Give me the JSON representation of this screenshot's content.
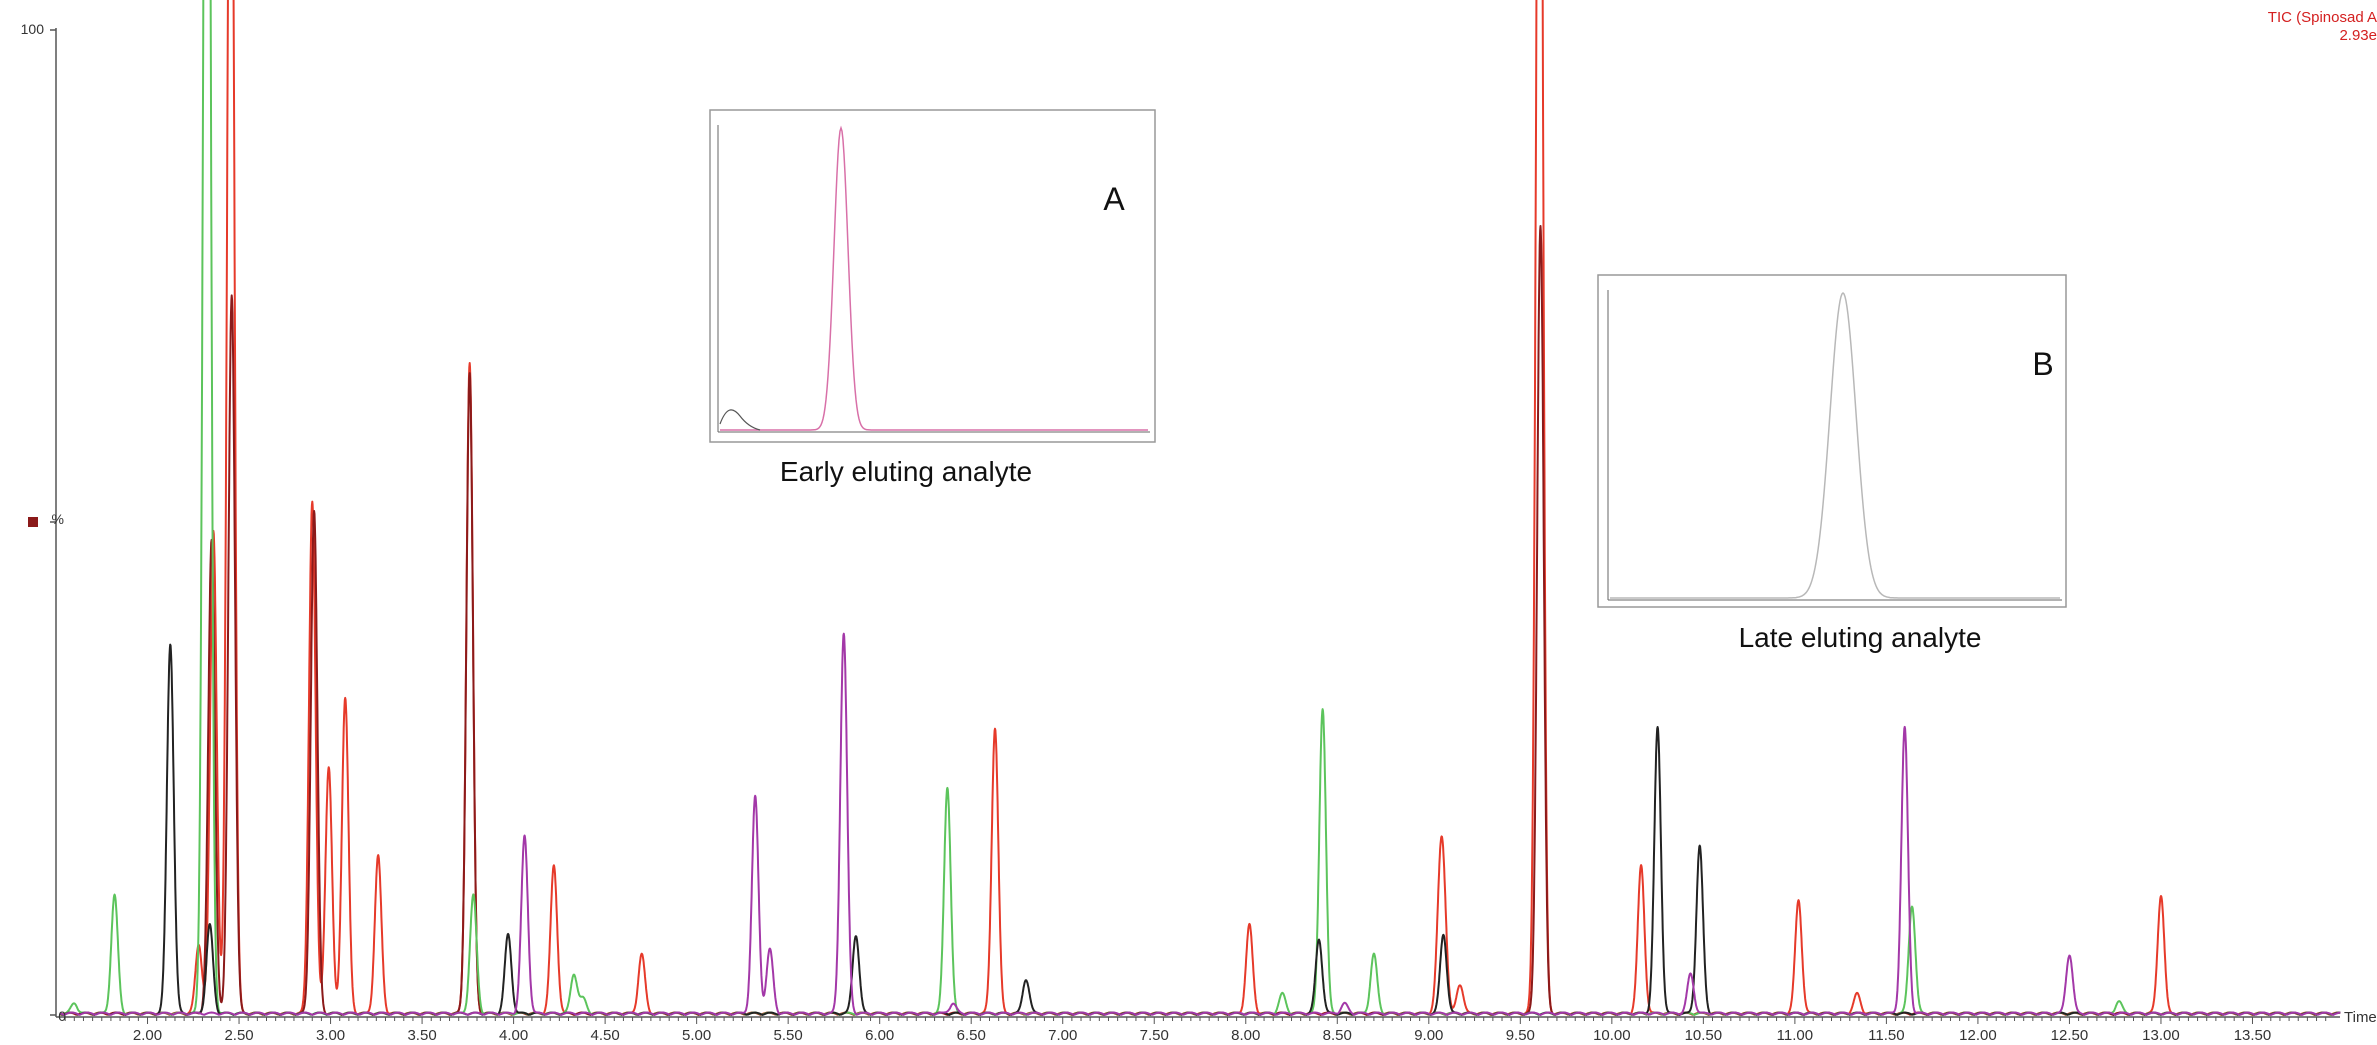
{
  "colors": {
    "red": "#e63a2a",
    "dark_red": "#8b1a1a",
    "green": "#5cc45c",
    "black": "#222222",
    "purple": "#a338a8",
    "pink": "#d870a8",
    "gray": "#b8b8b8",
    "title_red": "#d42020"
  },
  "header": {
    "trace_title": "TIC (Spinosad A",
    "intensity": "2.93e"
  },
  "inset_a": {
    "letter": "A",
    "caption": "Early eluting analyte",
    "trace_color": "#d870a8"
  },
  "inset_b": {
    "letter": "B",
    "caption": "Late eluting analyte",
    "trace_color": "#b8b8b8"
  },
  "chart_data": {
    "type": "line",
    "title": "TIC (Spinosad A",
    "xlabel": "Time",
    "ylabel": "%",
    "xlim": [
      1.5,
      14.0
    ],
    "ylim": [
      0,
      100
    ],
    "y_ticks": [
      0,
      100
    ],
    "x_ticks": [
      2.0,
      2.5,
      3.0,
      3.5,
      4.0,
      4.5,
      5.0,
      5.5,
      6.0,
      6.5,
      7.0,
      7.5,
      8.0,
      8.5,
      9.0,
      9.5,
      10.0,
      10.5,
      11.0,
      11.5,
      12.0,
      12.5,
      13.0,
      13.5
    ],
    "x_tick_labels": [
      "2.00",
      "2.50",
      "3.00",
      "3.50",
      "4.00",
      "4.50",
      "5.00",
      "5.50",
      "6.00",
      "6.50",
      "7.00",
      "7.50",
      "8.00",
      "8.50",
      "9.00",
      "9.50",
      "10.00",
      "10.50",
      "11.00",
      "11.50",
      "12.00",
      "12.50",
      "13.00",
      "13.50"
    ],
    "series": [
      {
        "color": "red",
        "peaks": [
          [
            2.28,
            7
          ],
          [
            2.36,
            49
          ],
          [
            2.45,
            79
          ],
          [
            2.46,
            73
          ],
          [
            2.9,
            52
          ],
          [
            2.99,
            25
          ],
          [
            3.08,
            32
          ],
          [
            3.26,
            16
          ],
          [
            3.76,
            66
          ],
          [
            4.22,
            15
          ],
          [
            4.7,
            6
          ],
          [
            6.63,
            29
          ],
          [
            8.02,
            9
          ],
          [
            9.06,
            10
          ],
          [
            9.08,
            11
          ],
          [
            9.17,
            3
          ],
          [
            9.6,
            80
          ],
          [
            9.61,
            81
          ],
          [
            10.16,
            15
          ],
          [
            11.02,
            11.5
          ],
          [
            11.34,
            2
          ],
          [
            13.0,
            12
          ]
        ]
      },
      {
        "color": "dark_red",
        "peaks": [
          [
            2.35,
            48
          ],
          [
            2.46,
            73
          ],
          [
            2.91,
            51
          ],
          [
            3.76,
            65
          ],
          [
            9.61,
            80
          ]
        ]
      },
      {
        "color": "green",
        "peaks": [
          [
            1.6,
            1
          ],
          [
            1.82,
            12
          ],
          [
            2.32,
            100
          ],
          [
            2.33,
            90
          ],
          [
            3.78,
            12
          ],
          [
            4.33,
            4
          ],
          [
            4.38,
            1.5
          ],
          [
            6.37,
            23
          ],
          [
            8.2,
            2
          ],
          [
            8.42,
            31
          ],
          [
            8.7,
            6
          ],
          [
            11.64,
            11
          ],
          [
            12.77,
            1.2
          ]
        ]
      },
      {
        "color": "black",
        "peaks": [
          [
            2.12,
            21
          ],
          [
            2.13,
            18
          ],
          [
            2.34,
            9
          ],
          [
            3.97,
            8
          ],
          [
            8.4,
            7.5
          ],
          [
            9.08,
            8
          ],
          [
            10.25,
            29
          ],
          [
            10.48,
            17
          ],
          [
            6.8,
            3.5
          ],
          [
            5.87,
            8
          ]
        ]
      },
      {
        "color": "purple",
        "peaks": [
          [
            4.06,
            18
          ],
          [
            5.32,
            22
          ],
          [
            5.4,
            6.5
          ],
          [
            5.8,
            25
          ],
          [
            5.81,
            15
          ],
          [
            8.54,
            1
          ],
          [
            10.43,
            4
          ],
          [
            11.6,
            29
          ],
          [
            12.5,
            6
          ],
          [
            6.4,
            1
          ]
        ]
      }
    ]
  }
}
